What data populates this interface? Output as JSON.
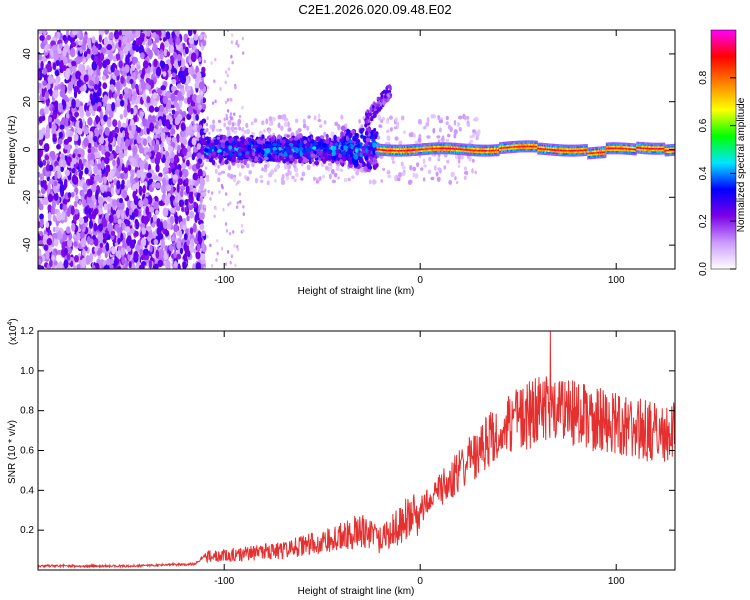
{
  "title": "C2E1.2026.020.09.48.E02",
  "chart_data": [
    {
      "type": "heatmap",
      "name": "spectrogram",
      "xlabel": "Height of straight line (km)",
      "ylabel": "Frequency (Hz)",
      "xlim": [
        -195,
        130
      ],
      "ylim": [
        -50,
        50
      ],
      "xticks": [
        -100,
        0,
        100
      ],
      "xtick_labels": [
        "-100",
        "0",
        "100"
      ],
      "yticks": [
        -40,
        -20,
        0,
        20,
        40
      ],
      "ytick_labels": [
        "-40",
        "-20",
        "0",
        "20",
        "40"
      ],
      "colorbar": {
        "label": "Normalized spectral amplitude",
        "range": [
          0,
          1
        ],
        "ticks": [
          0.0,
          0.2,
          0.4,
          0.6,
          0.8
        ],
        "tick_labels": [
          "0.0",
          "0.2",
          "0.4",
          "0.6",
          "0.8"
        ],
        "colors": [
          "#ffffff",
          "#cc99ff",
          "#7a00e6",
          "#0000ff",
          "#00e6ff",
          "#00ff00",
          "#ffff00",
          "#ff8000",
          "#ff0000",
          "#ff00ff"
        ]
      },
      "regions": [
        {
          "x_range": [
            -195,
            -110
          ],
          "freq_range": [
            -50,
            50
          ],
          "amplitude": 0.15,
          "description_value": "broadband noise"
        },
        {
          "x_range": [
            -110,
            -22
          ],
          "freq_center": 0,
          "freq_halfwidth": 6,
          "amplitude": 0.4
        },
        {
          "x_range": [
            -22,
            130
          ],
          "freq_center": 0,
          "freq_halfwidth": 2,
          "amplitude": 0.95
        }
      ],
      "branch": {
        "x": [
          -28,
          -20,
          -15
        ],
        "freq": [
          12,
          18,
          25
        ]
      }
    },
    {
      "type": "line",
      "name": "snr",
      "xlabel": "Height of straight line (km)",
      "ylabel": "SNR (10 * v/v)",
      "multiplier_label": "(x10",
      "multiplier_exp": "4",
      "multiplier_close": ")",
      "xlim": [
        -195,
        130
      ],
      "ylim": [
        0,
        1.2
      ],
      "xticks": [
        -100,
        0,
        100
      ],
      "xtick_labels": [
        "-100",
        "0",
        "100"
      ],
      "yticks": [
        0.2,
        0.4,
        0.6,
        0.8,
        1.0,
        1.2
      ],
      "ytick_labels": [
        "0.2",
        "0.4",
        "0.6",
        "0.8",
        "1.0",
        "1.2"
      ],
      "color": "#e53030",
      "x": [
        -195,
        -150,
        -115,
        -110,
        -90,
        -70,
        -50,
        -40,
        -30,
        -20,
        -10,
        0,
        10,
        20,
        30,
        40,
        50,
        60,
        70,
        80,
        90,
        100,
        110,
        120,
        130
      ],
      "y": [
        0.02,
        0.02,
        0.03,
        0.07,
        0.08,
        0.1,
        0.14,
        0.17,
        0.2,
        0.15,
        0.23,
        0.3,
        0.4,
        0.5,
        0.6,
        0.7,
        0.75,
        0.8,
        0.8,
        0.78,
        0.76,
        0.73,
        0.71,
        0.69,
        0.7
      ]
    }
  ]
}
